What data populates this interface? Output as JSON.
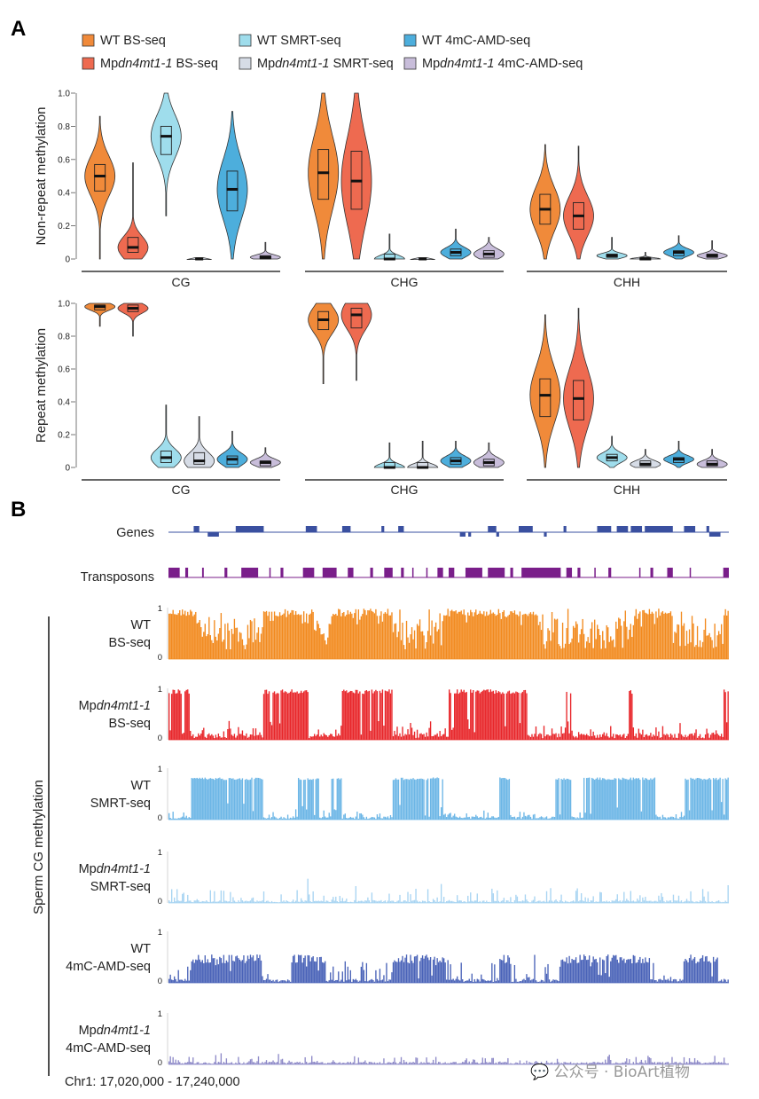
{
  "panel_a_label": "A",
  "panel_b_label": "B",
  "legend": [
    {
      "id": "wt_bs",
      "label": "WT BS-seq",
      "color": "#F08A3A"
    },
    {
      "id": "wt_smrt",
      "label": "WT SMRT-seq",
      "color": "#9FDDEC"
    },
    {
      "id": "wt_amd",
      "label": "WT 4mC-AMD-seq",
      "color": "#4DAEDC"
    },
    {
      "id": "mut_bs",
      "label": "Mpdn4mt1-1 BS-seq",
      "color": "#EE6A50"
    },
    {
      "id": "mut_smrt",
      "label": "Mpdn4mt1-1 SMRT-seq",
      "color": "#D6DCE6"
    },
    {
      "id": "mut_amd",
      "label": "Mpdn4mt1-1 4mC-AMD-seq",
      "color": "#C8BDDA"
    }
  ],
  "legend_parts": [
    {
      "pre": "WT BS-seq",
      "ital": "",
      "post": ""
    },
    {
      "pre": "WT SMRT-seq",
      "ital": "",
      "post": ""
    },
    {
      "pre": "WT 4mC-AMD-seq",
      "ital": "",
      "post": ""
    },
    {
      "pre": "Mp",
      "ital": "dn4mt1-1",
      "post": " BS-seq"
    },
    {
      "pre": "Mp",
      "ital": "dn4mt1-1",
      "post": " SMRT-seq"
    },
    {
      "pre": "Mp",
      "ital": "dn4mt1-1",
      "post": "  4mC-AMD-seq"
    }
  ],
  "chart_data": [
    {
      "type": "violin",
      "title": "",
      "ylabel": "Non-repeat methylation",
      "ylim": [
        0,
        1
      ],
      "yticks": [
        "0",
        "0.2",
        "0.4",
        "0.6",
        "0.8",
        "1.0"
      ],
      "categories": [
        "CG",
        "CHG",
        "CHH"
      ],
      "series_order": [
        "wt_bs",
        "mut_bs",
        "wt_smrt",
        "mut_smrt",
        "wt_amd",
        "mut_amd"
      ],
      "groups": {
        "CG": [
          {
            "series": "wt_bs",
            "median": 0.5,
            "q1": 0.41,
            "q3": 0.57,
            "min": 0.0,
            "max": 0.86
          },
          {
            "series": "mut_bs",
            "median": 0.07,
            "q1": 0.04,
            "q3": 0.13,
            "min": 0.0,
            "max": 0.58
          },
          {
            "series": "wt_smrt",
            "median": 0.74,
            "q1": 0.63,
            "q3": 0.8,
            "min": 0.26,
            "max": 1.0
          },
          {
            "series": "mut_smrt",
            "median": 0.0,
            "q1": 0.0,
            "q3": 0.003,
            "min": 0.0,
            "max": 0.01
          },
          {
            "series": "wt_amd",
            "median": 0.42,
            "q1": 0.29,
            "q3": 0.53,
            "min": 0.0,
            "max": 0.89
          },
          {
            "series": "mut_amd",
            "median": 0.01,
            "q1": 0.0,
            "q3": 0.02,
            "min": 0.0,
            "max": 0.1
          }
        ],
        "CHG": [
          {
            "series": "wt_bs",
            "median": 0.52,
            "q1": 0.36,
            "q3": 0.66,
            "min": 0.0,
            "max": 1.0
          },
          {
            "series": "mut_bs",
            "median": 0.47,
            "q1": 0.3,
            "q3": 0.65,
            "min": 0.0,
            "max": 1.0
          },
          {
            "series": "wt_smrt",
            "median": 0.0,
            "q1": 0.0,
            "q3": 0.03,
            "min": 0.0,
            "max": 0.15
          },
          {
            "series": "mut_smrt",
            "median": 0.0,
            "q1": 0.0,
            "q3": 0.003,
            "min": 0.0,
            "max": 0.01
          },
          {
            "series": "wt_amd",
            "median": 0.04,
            "q1": 0.02,
            "q3": 0.06,
            "min": 0.0,
            "max": 0.18
          },
          {
            "series": "mut_amd",
            "median": 0.03,
            "q1": 0.01,
            "q3": 0.05,
            "min": 0.0,
            "max": 0.13
          }
        ],
        "CHH": [
          {
            "series": "wt_bs",
            "median": 0.3,
            "q1": 0.21,
            "q3": 0.39,
            "min": 0.0,
            "max": 0.69
          },
          {
            "series": "mut_bs",
            "median": 0.26,
            "q1": 0.18,
            "q3": 0.34,
            "min": 0.0,
            "max": 0.68
          },
          {
            "series": "wt_smrt",
            "median": 0.02,
            "q1": 0.01,
            "q3": 0.03,
            "min": 0.0,
            "max": 0.13
          },
          {
            "series": "mut_smrt",
            "median": 0.0,
            "q1": 0.0,
            "q3": 0.01,
            "min": 0.0,
            "max": 0.04
          },
          {
            "series": "wt_amd",
            "median": 0.04,
            "q1": 0.02,
            "q3": 0.05,
            "min": 0.0,
            "max": 0.14
          },
          {
            "series": "mut_amd",
            "median": 0.02,
            "q1": 0.01,
            "q3": 0.03,
            "min": 0.0,
            "max": 0.11
          }
        ]
      }
    },
    {
      "type": "violin",
      "title": "",
      "ylabel": "Repeat methylation",
      "ylim": [
        0,
        1
      ],
      "yticks": [
        "0",
        "0.2",
        "0.4",
        "0.6",
        "0.8",
        "1.0"
      ],
      "categories": [
        "CG",
        "CHG",
        "CHH"
      ],
      "series_order": [
        "wt_bs",
        "mut_bs",
        "wt_smrt",
        "mut_smrt",
        "wt_amd",
        "mut_amd"
      ],
      "groups": {
        "CG": [
          {
            "series": "wt_bs",
            "median": 0.98,
            "q1": 0.96,
            "q3": 0.99,
            "min": 0.86,
            "max": 1.0
          },
          {
            "series": "mut_bs",
            "median": 0.97,
            "q1": 0.95,
            "q3": 0.99,
            "min": 0.8,
            "max": 1.0
          },
          {
            "series": "wt_smrt",
            "median": 0.06,
            "q1": 0.03,
            "q3": 0.1,
            "min": 0.0,
            "max": 0.38
          },
          {
            "series": "mut_smrt",
            "median": 0.04,
            "q1": 0.02,
            "q3": 0.09,
            "min": 0.0,
            "max": 0.31
          },
          {
            "series": "wt_amd",
            "median": 0.05,
            "q1": 0.02,
            "q3": 0.07,
            "min": 0.0,
            "max": 0.22
          },
          {
            "series": "mut_amd",
            "median": 0.03,
            "q1": 0.01,
            "q3": 0.04,
            "min": 0.0,
            "max": 0.12
          }
        ],
        "CHG": [
          {
            "series": "wt_bs",
            "median": 0.9,
            "q1": 0.84,
            "q3": 0.95,
            "min": 0.51,
            "max": 1.0
          },
          {
            "series": "mut_bs",
            "median": 0.93,
            "q1": 0.85,
            "q3": 0.97,
            "min": 0.53,
            "max": 1.0
          },
          {
            "series": "wt_smrt",
            "median": 0.0,
            "q1": 0.0,
            "q3": 0.03,
            "min": 0.0,
            "max": 0.15
          },
          {
            "series": "mut_smrt",
            "median": 0.0,
            "q1": 0.0,
            "q3": 0.03,
            "min": 0.0,
            "max": 0.16
          },
          {
            "series": "wt_amd",
            "median": 0.04,
            "q1": 0.02,
            "q3": 0.06,
            "min": 0.0,
            "max": 0.16
          },
          {
            "series": "mut_amd",
            "median": 0.03,
            "q1": 0.01,
            "q3": 0.05,
            "min": 0.0,
            "max": 0.15
          }
        ],
        "CHH": [
          {
            "series": "wt_bs",
            "median": 0.44,
            "q1": 0.31,
            "q3": 0.54,
            "min": 0.0,
            "max": 0.93
          },
          {
            "series": "mut_bs",
            "median": 0.42,
            "q1": 0.29,
            "q3": 0.53,
            "min": 0.0,
            "max": 0.97
          },
          {
            "series": "wt_smrt",
            "median": 0.06,
            "q1": 0.04,
            "q3": 0.08,
            "min": 0.0,
            "max": 0.19
          },
          {
            "series": "mut_smrt",
            "median": 0.02,
            "q1": 0.01,
            "q3": 0.04,
            "min": 0.0,
            "max": 0.11
          },
          {
            "series": "wt_amd",
            "median": 0.05,
            "q1": 0.03,
            "q3": 0.06,
            "min": 0.0,
            "max": 0.16
          },
          {
            "series": "mut_amd",
            "median": 0.02,
            "q1": 0.01,
            "q3": 0.04,
            "min": 0.0,
            "max": 0.11
          }
        ]
      }
    },
    {
      "type": "genome_tracks",
      "ylabel": "Sperm CG methylation",
      "region_label": "Chr1: 17,020,000 - 17,240,000",
      "region": {
        "chrom": "Chr1",
        "start": 17020000,
        "end": 17240000
      },
      "annotation_tracks": [
        {
          "name": "Genes",
          "color": "#3A50A0",
          "features_top": [
            [
              0.045,
              0.055
            ],
            [
              0.12,
              0.17
            ],
            [
              0.245,
              0.265
            ],
            [
              0.31,
              0.325
            ],
            [
              0.38,
              0.385
            ],
            [
              0.41,
              0.42
            ],
            [
              0.57,
              0.585
            ],
            [
              0.625,
              0.65
            ],
            [
              0.705,
              0.71
            ],
            [
              0.765,
              0.79
            ],
            [
              0.8,
              0.82
            ],
            [
              0.825,
              0.845
            ],
            [
              0.85,
              0.9
            ],
            [
              0.92,
              0.94
            ],
            [
              0.96,
              0.965
            ]
          ],
          "features_bottom": [
            [
              0.07,
              0.09
            ],
            [
              0.52,
              0.53
            ],
            [
              0.535,
              0.54
            ],
            [
              0.585,
              0.59
            ],
            [
              0.67,
              0.675
            ],
            [
              0.965,
              0.985
            ]
          ]
        },
        {
          "name": "Transposons",
          "color": "#7A1E8A",
          "features": [
            [
              0.0,
              0.02
            ],
            [
              0.03,
              0.035
            ],
            [
              0.06,
              0.063
            ],
            [
              0.1,
              0.105
            ],
            [
              0.13,
              0.16
            ],
            [
              0.18,
              0.182
            ],
            [
              0.2,
              0.205
            ],
            [
              0.24,
              0.26
            ],
            [
              0.275,
              0.3
            ],
            [
              0.32,
              0.33
            ],
            [
              0.36,
              0.365
            ],
            [
              0.385,
              0.4
            ],
            [
              0.415,
              0.42
            ],
            [
              0.435,
              0.437
            ],
            [
              0.46,
              0.462
            ],
            [
              0.48,
              0.49
            ],
            [
              0.5,
              0.51
            ],
            [
              0.53,
              0.56
            ],
            [
              0.57,
              0.6
            ],
            [
              0.61,
              0.615
            ],
            [
              0.63,
              0.7
            ],
            [
              0.71,
              0.72
            ],
            [
              0.73,
              0.735
            ],
            [
              0.76,
              0.762
            ],
            [
              0.785,
              0.79
            ],
            [
              0.84,
              0.842
            ],
            [
              0.86,
              0.865
            ],
            [
              0.89,
              0.9
            ],
            [
              0.93,
              0.932
            ],
            [
              0.99,
              1.0
            ]
          ]
        }
      ],
      "signal_tracks": [
        {
          "id": "wt_bs",
          "line1": "WT",
          "line1_italic": false,
          "line2": "BS-seq",
          "color": "#F28A1E",
          "ymin": "0",
          "ymax": "1",
          "high_regions": [
            [
              0.0,
              0.05
            ],
            [
              0.17,
              0.26
            ],
            [
              0.29,
              0.4
            ],
            [
              0.49,
              0.66
            ],
            [
              0.83,
              0.9
            ],
            [
              0.99,
              1.0
            ]
          ],
          "high": 0.98,
          "low": 0.62,
          "noise": 0.3
        },
        {
          "id": "mut_bs",
          "line1": "Mp",
          "line1_italic_part": "dn4mt1-1",
          "line2": "BS-seq",
          "color": "#E8262A",
          "ymin": "0",
          "ymax": "1",
          "high_regions": [
            [
              0.0,
              0.04
            ],
            [
              0.17,
              0.25
            ],
            [
              0.31,
              0.4
            ],
            [
              0.5,
              0.64
            ],
            [
              0.71,
              0.72
            ],
            [
              0.82,
              0.83
            ],
            [
              0.99,
              1.0
            ]
          ],
          "high": 0.98,
          "low": 0.1,
          "noise": 0.18
        },
        {
          "id": "wt_smrt",
          "line1": "WT",
          "line1_italic": false,
          "line2": "SMRT-seq",
          "color": "#6CB6E6",
          "ymin": "0",
          "ymax": "1",
          "high_regions": [
            [
              0.04,
              0.17
            ],
            [
              0.23,
              0.27
            ],
            [
              0.29,
              0.31
            ],
            [
              0.4,
              0.49
            ],
            [
              0.59,
              0.61
            ],
            [
              0.69,
              0.72
            ],
            [
              0.74,
              0.87
            ],
            [
              0.92,
              1.0
            ]
          ],
          "high": 0.82,
          "low": 0.05,
          "noise": 0.1
        },
        {
          "id": "mut_smrt",
          "line1": "Mp",
          "line1_italic_part": "dn4mt1-1",
          "line2": "SMRT-seq",
          "color": "#A8D4F2",
          "ymin": "0",
          "ymax": "1",
          "high_regions": [],
          "high": 0.1,
          "low": 0.04,
          "noise": 0.22
        },
        {
          "id": "wt_amd",
          "line1": "WT",
          "line1_italic": false,
          "line2": "4mC-AMD-seq",
          "color": "#4A63B8",
          "ymin": "0",
          "ymax": "1",
          "high_regions": [
            [
              0.04,
              0.17
            ],
            [
              0.22,
              0.28
            ],
            [
              0.4,
              0.5
            ],
            [
              0.59,
              0.61
            ],
            [
              0.7,
              0.86
            ],
            [
              0.92,
              0.98
            ]
          ],
          "high": 0.55,
          "low": 0.06,
          "noise": 0.35
        },
        {
          "id": "mut_amd",
          "line1": "Mp",
          "line1_italic_part": "dn4mt1-1",
          "line2": "4mC-AMD-seq",
          "color": "#8E8AC8",
          "ymin": "0",
          "ymax": "1",
          "high_regions": [],
          "high": 0.06,
          "low": 0.04,
          "noise": 0.12
        }
      ]
    }
  ],
  "watermark": "💬 公众号 · BioArt植物"
}
